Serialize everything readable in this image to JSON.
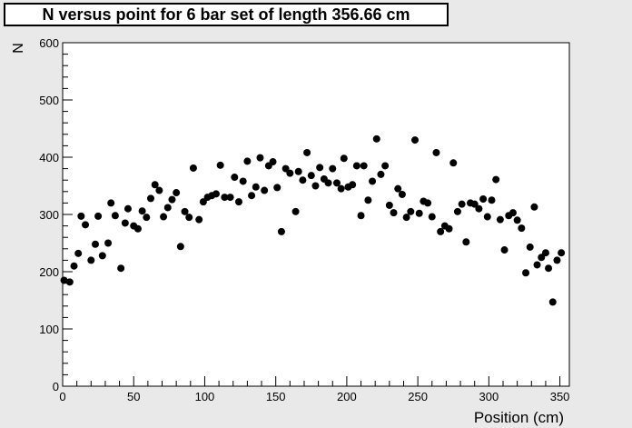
{
  "chart_data": {
    "type": "scatter",
    "title": "N versus point for 6 bar set of length 356.66 cm",
    "xlabel": "Position (cm)",
    "ylabel": "N",
    "xlim": [
      0,
      356.66
    ],
    "ylim": [
      0,
      600
    ],
    "xticks": [
      0,
      50,
      100,
      150,
      200,
      250,
      300,
      350
    ],
    "yticks": [
      0,
      100,
      200,
      300,
      400,
      500,
      600
    ],
    "grid": false,
    "marker_color": "#000000",
    "points": [
      [
        1,
        185
      ],
      [
        5,
        182
      ],
      [
        8,
        210
      ],
      [
        11,
        232
      ],
      [
        13,
        297
      ],
      [
        16,
        282
      ],
      [
        20,
        220
      ],
      [
        23,
        248
      ],
      [
        25,
        297
      ],
      [
        28,
        228
      ],
      [
        32,
        250
      ],
      [
        34,
        320
      ],
      [
        37,
        298
      ],
      [
        41,
        206
      ],
      [
        44,
        285
      ],
      [
        46,
        310
      ],
      [
        50,
        280
      ],
      [
        53,
        275
      ],
      [
        56,
        306
      ],
      [
        59,
        295
      ],
      [
        62,
        328
      ],
      [
        65,
        352
      ],
      [
        68,
        342
      ],
      [
        71,
        296
      ],
      [
        74,
        312
      ],
      [
        77,
        326
      ],
      [
        80,
        338
      ],
      [
        83,
        244
      ],
      [
        86,
        305
      ],
      [
        89,
        295
      ],
      [
        92,
        381
      ],
      [
        96,
        291
      ],
      [
        99,
        322
      ],
      [
        102,
        330
      ],
      [
        105,
        333
      ],
      [
        108,
        336
      ],
      [
        111,
        386
      ],
      [
        114,
        330
      ],
      [
        118,
        330
      ],
      [
        121,
        365
      ],
      [
        124,
        322
      ],
      [
        127,
        358
      ],
      [
        130,
        393
      ],
      [
        133,
        333
      ],
      [
        136,
        348
      ],
      [
        139,
        399
      ],
      [
        142,
        342
      ],
      [
        145,
        385
      ],
      [
        148,
        392
      ],
      [
        151,
        347
      ],
      [
        154,
        270
      ],
      [
        157,
        380
      ],
      [
        160,
        372
      ],
      [
        164,
        305
      ],
      [
        166,
        375
      ],
      [
        169,
        360
      ],
      [
        172,
        408
      ],
      [
        175,
        368
      ],
      [
        178,
        350
      ],
      [
        181,
        382
      ],
      [
        184,
        362
      ],
      [
        187,
        355
      ],
      [
        190,
        380
      ],
      [
        193,
        355
      ],
      [
        196,
        345
      ],
      [
        198,
        398
      ],
      [
        201,
        348
      ],
      [
        204,
        352
      ],
      [
        207,
        385
      ],
      [
        210,
        298
      ],
      [
        212,
        385
      ],
      [
        215,
        325
      ],
      [
        218,
        358
      ],
      [
        221,
        432
      ],
      [
        224,
        370
      ],
      [
        227,
        385
      ],
      [
        230,
        316
      ],
      [
        233,
        303
      ],
      [
        236,
        345
      ],
      [
        239,
        335
      ],
      [
        242,
        295
      ],
      [
        245,
        305
      ],
      [
        248,
        430
      ],
      [
        251,
        302
      ],
      [
        254,
        323
      ],
      [
        257,
        320
      ],
      [
        260,
        296
      ],
      [
        263,
        408
      ],
      [
        266,
        270
      ],
      [
        269,
        280
      ],
      [
        272,
        275
      ],
      [
        275,
        390
      ],
      [
        278,
        305
      ],
      [
        281,
        318
      ],
      [
        284,
        252
      ],
      [
        287,
        320
      ],
      [
        290,
        318
      ],
      [
        293,
        310
      ],
      [
        296,
        327
      ],
      [
        299,
        296
      ],
      [
        302,
        325
      ],
      [
        305,
        361
      ],
      [
        308,
        291
      ],
      [
        311,
        238
      ],
      [
        314,
        298
      ],
      [
        317,
        303
      ],
      [
        320,
        290
      ],
      [
        323,
        276
      ],
      [
        326,
        198
      ],
      [
        329,
        243
      ],
      [
        332,
        313
      ],
      [
        334,
        212
      ],
      [
        337,
        225
      ],
      [
        340,
        233
      ],
      [
        342,
        206
      ],
      [
        345,
        147
      ],
      [
        348,
        220
      ],
      [
        351,
        233
      ]
    ]
  }
}
